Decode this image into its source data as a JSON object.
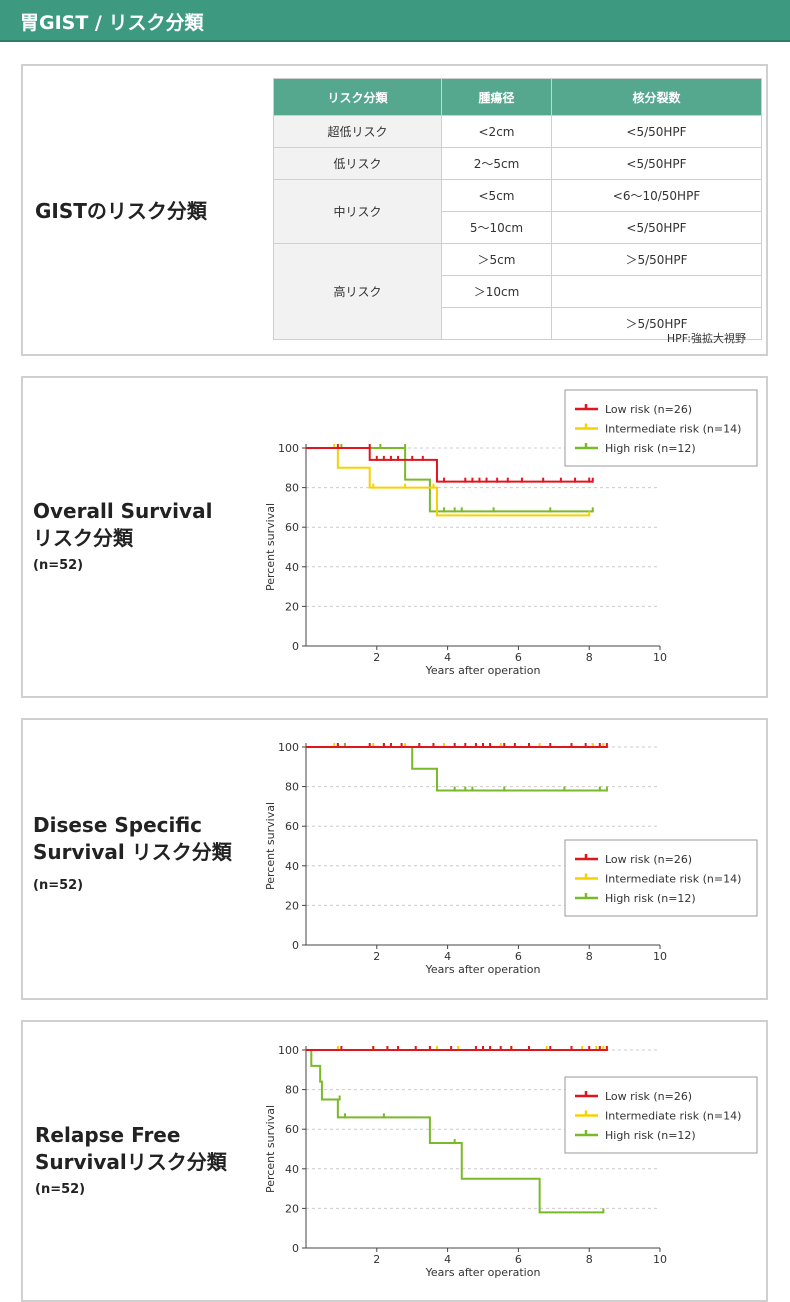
{
  "header": {
    "title": "胃GIST / リスク分類"
  },
  "risk_section": {
    "title": "GISTのリスク分類",
    "columns": [
      "リスク分類",
      "腫瘍径",
      "核分裂数"
    ],
    "rows": {
      "very_low": {
        "label": "超低リスク",
        "size": "<2cm",
        "mitosis": "<5/50HPF"
      },
      "low": {
        "label": "低リスク",
        "size": "2〜5cm",
        "mitosis": "<5/50HPF"
      },
      "intermediate": {
        "label": "中リスク",
        "rows": [
          {
            "size": "<5cm",
            "mitosis": "<6〜10/50HPF"
          },
          {
            "size": "5〜10cm",
            "mitosis": "<5/50HPF"
          }
        ]
      },
      "high": {
        "label": "高リスク",
        "rows": [
          {
            "size": "＞5cm",
            "mitosis": "＞5/50HPF"
          },
          {
            "size": "＞10cm",
            "mitosis": ""
          },
          {
            "size": "",
            "mitosis": "＞5/50HPF"
          }
        ]
      }
    },
    "note": "HPF:強拡大視野"
  },
  "charts_text": [
    {
      "title_line1": "Overall Survival",
      "title_line2": "リスク分類",
      "n": "(n=52)"
    },
    {
      "title_line1": "Disese Specific",
      "title_line2": "Survival リスク分類",
      "n": "(n=52)"
    },
    {
      "title_line1": "Relapse Free",
      "title_line2": "Survivalリスク分類",
      "n": "(n=52)"
    }
  ],
  "colors": {
    "header": "#3d9a80",
    "low": "#e0161e",
    "intermediate": "#f5d200",
    "high": "#7ab929"
  },
  "chart_data": [
    {
      "type": "line",
      "xlabel": "Years after operation",
      "ylabel": "Percent survival",
      "xlim": [
        0,
        10
      ],
      "ylim": [
        0,
        100
      ],
      "xticks": [
        2,
        4,
        6,
        8,
        10
      ],
      "yticks": [
        0,
        20,
        40,
        60,
        80,
        100
      ],
      "legend_position": "top-right",
      "series": [
        {
          "name": "Low risk (n=26)",
          "color": "#e0161e",
          "steps": [
            [
              0,
              100
            ],
            [
              1.8,
              94
            ],
            [
              3.7,
              83
            ],
            [
              8.1,
              83
            ]
          ],
          "censors": [
            [
              0.9,
              100
            ],
            [
              1.8,
              100
            ],
            [
              2.0,
              94
            ],
            [
              2.2,
              94
            ],
            [
              2.4,
              94
            ],
            [
              2.6,
              94
            ],
            [
              3.0,
              94
            ],
            [
              3.3,
              94
            ],
            [
              3.9,
              83
            ],
            [
              4.5,
              83
            ],
            [
              4.7,
              83
            ],
            [
              4.9,
              83
            ],
            [
              5.1,
              83
            ],
            [
              5.4,
              83
            ],
            [
              5.7,
              83
            ],
            [
              6.1,
              83
            ],
            [
              6.7,
              83
            ],
            [
              7.2,
              83
            ],
            [
              7.6,
              83
            ],
            [
              8.0,
              83
            ],
            [
              8.1,
              83
            ]
          ]
        },
        {
          "name": "Intermediate risk (n=14)",
          "color": "#f5d200",
          "steps": [
            [
              0,
              100
            ],
            [
              0.9,
              90
            ],
            [
              1.8,
              80
            ],
            [
              3.7,
              66
            ],
            [
              8.0,
              66
            ]
          ],
          "censors": [
            [
              0.8,
              100
            ],
            [
              1.9,
              80
            ],
            [
              2.8,
              80
            ],
            [
              3.6,
              80
            ],
            [
              8.0,
              66
            ]
          ]
        },
        {
          "name": "High risk (n=12)",
          "color": "#7ab929",
          "steps": [
            [
              0,
              100
            ],
            [
              2.8,
              84
            ],
            [
              3.5,
              68
            ],
            [
              8.1,
              68
            ]
          ],
          "censors": [
            [
              1.0,
              100
            ],
            [
              2.1,
              100
            ],
            [
              2.8,
              100
            ],
            [
              3.9,
              68
            ],
            [
              4.2,
              68
            ],
            [
              4.4,
              68
            ],
            [
              5.3,
              68
            ],
            [
              6.9,
              68
            ],
            [
              8.1,
              68
            ]
          ]
        }
      ]
    },
    {
      "type": "line",
      "xlabel": "Years after operation",
      "ylabel": "Percent survival",
      "xlim": [
        0,
        10
      ],
      "ylim": [
        0,
        100
      ],
      "xticks": [
        2,
        4,
        6,
        8,
        10
      ],
      "yticks": [
        0,
        20,
        40,
        60,
        80,
        100
      ],
      "legend_position": "right",
      "series": [
        {
          "name": "Low risk (n=26)",
          "color": "#e0161e",
          "steps": [
            [
              0,
              100
            ],
            [
              8.5,
              100
            ]
          ],
          "censors": [
            [
              0.9,
              100
            ],
            [
              1.8,
              100
            ],
            [
              2.2,
              100
            ],
            [
              2.4,
              100
            ],
            [
              2.7,
              100
            ],
            [
              3.2,
              100
            ],
            [
              3.6,
              100
            ],
            [
              4.2,
              100
            ],
            [
              4.5,
              100
            ],
            [
              4.8,
              100
            ],
            [
              5.0,
              100
            ],
            [
              5.2,
              100
            ],
            [
              5.6,
              100
            ],
            [
              5.9,
              100
            ],
            [
              6.3,
              100
            ],
            [
              6.9,
              100
            ],
            [
              7.5,
              100
            ],
            [
              7.9,
              100
            ],
            [
              8.3,
              100
            ],
            [
              8.5,
              100
            ]
          ]
        },
        {
          "name": "Intermediate risk (n=14)",
          "color": "#f5d200",
          "steps": [
            [
              0,
              100
            ],
            [
              8.4,
              100
            ]
          ],
          "censors": [
            [
              0.8,
              100
            ],
            [
              1.9,
              100
            ],
            [
              2.8,
              100
            ],
            [
              3.9,
              100
            ],
            [
              5.5,
              100
            ],
            [
              6.6,
              100
            ],
            [
              8.1,
              100
            ],
            [
              8.4,
              100
            ]
          ]
        },
        {
          "name": "High risk (n=12)",
          "color": "#7ab929",
          "steps": [
            [
              0,
              100
            ],
            [
              3.0,
              89
            ],
            [
              3.7,
              78
            ],
            [
              8.5,
              78
            ]
          ],
          "censors": [
            [
              0.9,
              100
            ],
            [
              1.1,
              100
            ],
            [
              2.2,
              100
            ],
            [
              4.2,
              78
            ],
            [
              4.5,
              78
            ],
            [
              4.7,
              78
            ],
            [
              5.6,
              78
            ],
            [
              7.3,
              78
            ],
            [
              8.3,
              78
            ],
            [
              8.5,
              78
            ]
          ]
        }
      ]
    },
    {
      "type": "line",
      "xlabel": "Years after operation",
      "ylabel": "Percent survival",
      "xlim": [
        0,
        10
      ],
      "ylim": [
        0,
        100
      ],
      "xticks": [
        2,
        4,
        6,
        8,
        10
      ],
      "yticks": [
        0,
        20,
        40,
        60,
        80,
        100
      ],
      "legend_position": "right",
      "series": [
        {
          "name": "Low risk (n=26)",
          "color": "#e0161e",
          "steps": [
            [
              0,
              100
            ],
            [
              8.5,
              100
            ]
          ],
          "censors": [
            [
              1.0,
              100
            ],
            [
              1.9,
              100
            ],
            [
              2.3,
              100
            ],
            [
              2.6,
              100
            ],
            [
              3.1,
              100
            ],
            [
              3.5,
              100
            ],
            [
              4.1,
              100
            ],
            [
              4.8,
              100
            ],
            [
              5.0,
              100
            ],
            [
              5.2,
              100
            ],
            [
              5.5,
              100
            ],
            [
              5.8,
              100
            ],
            [
              6.3,
              100
            ],
            [
              6.9,
              100
            ],
            [
              7.5,
              100
            ],
            [
              8.0,
              100
            ],
            [
              8.3,
              100
            ],
            [
              8.5,
              100
            ]
          ]
        },
        {
          "name": "Intermediate risk (n=14)",
          "color": "#f5d200",
          "steps": [
            [
              0,
              100
            ],
            [
              8.4,
              100
            ]
          ],
          "censors": [
            [
              0.9,
              100
            ],
            [
              1.9,
              100
            ],
            [
              2.6,
              100
            ],
            [
              3.7,
              100
            ],
            [
              4.3,
              100
            ],
            [
              5.8,
              100
            ],
            [
              6.8,
              100
            ],
            [
              7.8,
              100
            ],
            [
              8.2,
              100
            ],
            [
              8.4,
              100
            ]
          ]
        },
        {
          "name": "High risk (n=12)",
          "color": "#7ab929",
          "steps": [
            [
              0,
              100
            ],
            [
              0.15,
              92
            ],
            [
              0.4,
              84
            ],
            [
              0.45,
              75
            ],
            [
              0.9,
              66
            ],
            [
              3.5,
              53
            ],
            [
              4.4,
              35
            ],
            [
              6.6,
              18
            ],
            [
              8.4,
              18
            ]
          ],
          "censors": [
            [
              0.95,
              75
            ],
            [
              1.1,
              66
            ],
            [
              2.2,
              66
            ],
            [
              4.2,
              53
            ],
            [
              8.4,
              18
            ]
          ]
        }
      ]
    }
  ]
}
